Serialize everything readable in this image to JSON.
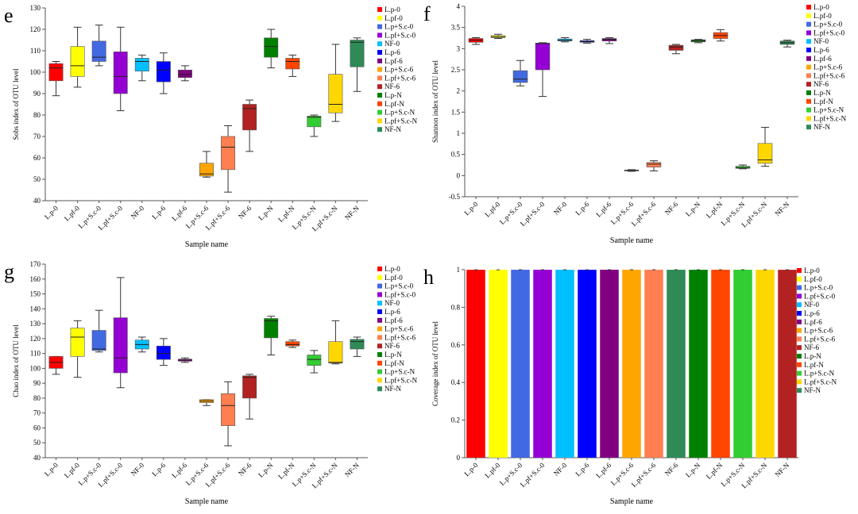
{
  "chart_data": [
    {
      "panel_letter": "e",
      "type": "boxplot",
      "ylabel": "Sobs index of OTU level",
      "xlabel": "Sample name",
      "ylim": [
        40,
        130
      ],
      "yticks": [
        40,
        50,
        60,
        70,
        80,
        90,
        100,
        110,
        120,
        130
      ],
      "categories": [
        "L.p-0",
        "L.pf-0",
        "L.p+S.c-0",
        "L.pf+S.c-0",
        "NF-0",
        "L.p-6",
        "L.pf-6",
        "L.p+S.c-6",
        "L.pf+S.c-6",
        "NF-6",
        "L.p-N",
        "L.pf-N",
        "L.p+S.c-N",
        "L.pf+S.c-N",
        "NF-N"
      ],
      "boxes": [
        {
          "min": 89,
          "q1": 96,
          "median": 102,
          "q3": 104,
          "max": 105
        },
        {
          "min": 93,
          "q1": 98,
          "median": 103,
          "q3": 112,
          "max": 121
        },
        {
          "min": 103,
          "q1": 105,
          "median": 107,
          "q3": 114.5,
          "max": 122
        },
        {
          "min": 82,
          "q1": 90,
          "median": 98,
          "q3": 109.5,
          "max": 121
        },
        {
          "min": 96,
          "q1": 100.5,
          "median": 105,
          "q3": 106.5,
          "max": 108
        },
        {
          "min": 90,
          "q1": 95.5,
          "median": 101,
          "q3": 105,
          "max": 109
        },
        {
          "min": 96,
          "q1": 97.5,
          "median": 99,
          "q3": 101,
          "max": 103
        },
        {
          "min": 51,
          "q1": 51.5,
          "median": 52.5,
          "q3": 57.5,
          "max": 63
        },
        {
          "min": 44,
          "q1": 54.5,
          "median": 65,
          "q3": 70,
          "max": 75
        },
        {
          "min": 63,
          "q1": 73,
          "median": 83,
          "q3": 85,
          "max": 87
        },
        {
          "min": 102,
          "q1": 107,
          "median": 112,
          "q3": 116,
          "max": 120
        },
        {
          "min": 98,
          "q1": 101.5,
          "median": 105,
          "q3": 106.5,
          "max": 108
        },
        {
          "min": 70,
          "q1": 74.5,
          "median": 79,
          "q3": 79.5,
          "max": 80
        },
        {
          "min": 77,
          "q1": 81,
          "median": 85,
          "q3": 99,
          "max": 113
        },
        {
          "min": 91,
          "q1": 102.5,
          "median": 114,
          "q3": 115,
          "max": 116
        }
      ]
    },
    {
      "panel_letter": "f",
      "type": "boxplot",
      "ylabel": "Shannon index of OTU level",
      "xlabel": "Sample name",
      "ylim": [
        -0.5,
        4
      ],
      "yticks": [
        -0.5,
        0,
        0.5,
        1,
        1.5,
        2,
        2.5,
        3,
        3.5,
        4
      ],
      "categories": [
        "L.p-0",
        "L.pf-0",
        "L.p+S.c-0",
        "L.pf+S.c-0",
        "NF-0",
        "L.p-6",
        "L.pf-6",
        "L.p+S.c-6",
        "L.pf+S.c-6",
        "NF-6",
        "L.p-N",
        "L.pf-N",
        "L.p+S.c-N",
        "L.pf+S.c-N",
        "NF-N"
      ],
      "boxes": [
        {
          "min": 3.1,
          "q1": 3.15,
          "median": 3.2,
          "q3": 3.24,
          "max": 3.26
        },
        {
          "min": 3.24,
          "q1": 3.26,
          "median": 3.28,
          "q3": 3.31,
          "max": 3.34
        },
        {
          "min": 2.12,
          "q1": 2.2,
          "median": 2.28,
          "q3": 2.48,
          "max": 2.72
        },
        {
          "min": 1.87,
          "q1": 2.5,
          "median": 3.12,
          "q3": 3.13,
          "max": 3.14
        },
        {
          "min": 3.16,
          "q1": 3.18,
          "median": 3.2,
          "q3": 3.23,
          "max": 3.26
        },
        {
          "min": 3.13,
          "q1": 3.15,
          "median": 3.17,
          "q3": 3.19,
          "max": 3.22
        },
        {
          "min": 3.12,
          "q1": 3.18,
          "median": 3.22,
          "q3": 3.24,
          "max": 3.26
        },
        {
          "min": 0.1,
          "q1": 0.11,
          "median": 0.12,
          "q3": 0.13,
          "max": 0.14
        },
        {
          "min": 0.11,
          "q1": 0.2,
          "median": 0.27,
          "q3": 0.31,
          "max": 0.35
        },
        {
          "min": 2.88,
          "q1": 2.96,
          "median": 3.04,
          "q3": 3.08,
          "max": 3.1
        },
        {
          "min": 3.14,
          "q1": 3.16,
          "median": 3.19,
          "q3": 3.21,
          "max": 3.22
        },
        {
          "min": 3.18,
          "q1": 3.24,
          "median": 3.31,
          "q3": 3.38,
          "max": 3.45
        },
        {
          "min": 0.16,
          "q1": 0.17,
          "median": 0.19,
          "q3": 0.22,
          "max": 0.25
        },
        {
          "min": 0.22,
          "q1": 0.29,
          "median": 0.37,
          "q3": 0.76,
          "max": 1.14
        },
        {
          "min": 3.04,
          "q1": 3.1,
          "median": 3.14,
          "q3": 3.18,
          "max": 3.2
        }
      ]
    },
    {
      "panel_letter": "g",
      "type": "boxplot",
      "ylabel": "Chao index of OTU level",
      "xlabel": "Sample name",
      "ylim": [
        40,
        170
      ],
      "yticks": [
        40,
        50,
        60,
        70,
        80,
        90,
        100,
        110,
        120,
        130,
        140,
        150,
        160,
        170
      ],
      "categories": [
        "L.p-0",
        "L.pf-0",
        "L.p+S.c-0",
        "L.pf+S.c-0",
        "NF-0",
        "L.p-6",
        "L.pf-6",
        "L.p+S.c-6",
        "L.pf+S.c-6",
        "NF-6",
        "L.p-N",
        "L.pf-N",
        "L.p+S.c-N",
        "L.pf+S.c-N",
        "NF-N"
      ],
      "boxes": [
        {
          "min": 96,
          "q1": 100,
          "median": 104,
          "q3": 108,
          "max": 108
        },
        {
          "min": 94,
          "q1": 108,
          "median": 121,
          "q3": 127,
          "max": 132
        },
        {
          "min": 111,
          "q1": 112,
          "median": 113,
          "q3": 125.5,
          "max": 139
        },
        {
          "min": 87,
          "q1": 97,
          "median": 107,
          "q3": 134,
          "max": 161
        },
        {
          "min": 111,
          "q1": 113,
          "median": 116,
          "q3": 119,
          "max": 121
        },
        {
          "min": 102,
          "q1": 106,
          "median": 110,
          "q3": 115,
          "max": 120
        },
        {
          "min": 104,
          "q1": 104.8,
          "median": 105.5,
          "q3": 106.2,
          "max": 107
        },
        {
          "min": 75,
          "q1": 77,
          "median": 78,
          "q3": 79,
          "max": 79
        },
        {
          "min": 48,
          "q1": 61.5,
          "median": 75,
          "q3": 83,
          "max": 91
        },
        {
          "min": 66,
          "q1": 80,
          "median": 94,
          "q3": 95,
          "max": 96
        },
        {
          "min": 109,
          "q1": 120.5,
          "median": 132,
          "q3": 133.5,
          "max": 135
        },
        {
          "min": 114,
          "q1": 115,
          "median": 116,
          "q3": 118,
          "max": 119
        },
        {
          "min": 97,
          "q1": 102,
          "median": 106,
          "q3": 109,
          "max": 112
        },
        {
          "min": 103,
          "q1": 103.5,
          "median": 104,
          "q3": 118,
          "max": 132
        },
        {
          "min": 108,
          "q1": 113,
          "median": 118,
          "q3": 119.5,
          "max": 121
        }
      ]
    },
    {
      "panel_letter": "h",
      "type": "bar",
      "ylabel": "Coverage index of OTU level",
      "xlabel": "Sample name",
      "ylim": [
        0,
        1
      ],
      "yticks": [
        0,
        0.2,
        0.4,
        0.6,
        0.8,
        1
      ],
      "categories": [
        "L.p-0",
        "L.pf-0",
        "L.p+S.c-0",
        "L.pf+S.c-0",
        "NF-0",
        "L.p-6",
        "L.pf-6",
        "L.p+S.c-6",
        "L.pf+S.c-6",
        "NF-6",
        "L.p-N",
        "L.pf-N",
        "L.p+S.c-N",
        "L.pf+S.c-N",
        "NF-N"
      ],
      "values": [
        0.9995,
        0.9994,
        0.9996,
        0.9995,
        0.9995,
        0.9995,
        0.9996,
        0.9997,
        0.9997,
        0.9996,
        0.9995,
        0.9995,
        0.9997,
        0.9996,
        0.9995
      ]
    }
  ],
  "legend": [
    {
      "label": "L.p-0",
      "color": "#FF0000"
    },
    {
      "label": "L.pf-0",
      "color": "#FFFF00"
    },
    {
      "label": "L.p+S.c-0",
      "color": "#4169E1"
    },
    {
      "label": "L.pf+S.c-0",
      "color": "#9400D3"
    },
    {
      "label": "NF-0",
      "color": "#00BFFF"
    },
    {
      "label": "L.p-6",
      "color": "#0000FF"
    },
    {
      "label": "L.pf-6",
      "color": "#800080"
    },
    {
      "label": "L.p+S.c-6",
      "color": "#FFA500"
    },
    {
      "label": "L.pf+S.c-6",
      "color": "#FF7F50"
    },
    {
      "label": "NF-6",
      "color": "#B22222"
    },
    {
      "label": "L.p-N",
      "color": "#008000"
    },
    {
      "label": "L.pf-N",
      "color": "#FF4500"
    },
    {
      "label": "L.p+S.c-N",
      "color": "#32CD32"
    },
    {
      "label": "L.pf+S.c-N",
      "color": "#FFD700"
    },
    {
      "label": "NF-N",
      "color": "#2E8B57"
    }
  ],
  "panel_h_bar_colors": [
    "#FF0000",
    "#FFFF00",
    "#4169E1",
    "#9400D3",
    "#00BFFF",
    "#0000FF",
    "#800080",
    "#FFA500",
    "#FF7F50",
    "#2E8B57",
    "#008000",
    "#FF4500",
    "#32CD32",
    "#FFD700",
    "#B22222"
  ]
}
